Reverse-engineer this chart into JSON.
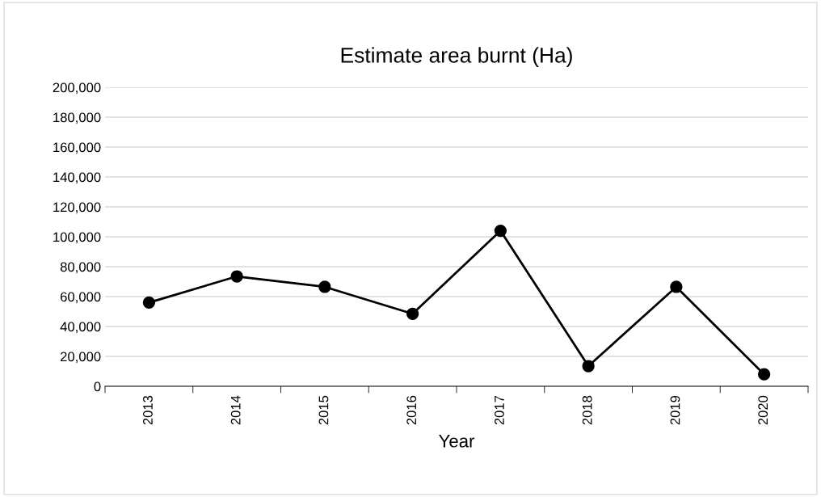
{
  "chart_data": {
    "type": "line",
    "title": "Estimate area burnt (Ha)",
    "xlabel": "Year",
    "categories": [
      "2013",
      "2014",
      "2015",
      "2016",
      "2017",
      "2018",
      "2019",
      "2020"
    ],
    "series": [
      {
        "color": "#000000",
        "values": [
          56000,
          73500,
          66500,
          48500,
          104000,
          13500,
          66500,
          8000
        ]
      }
    ],
    "ylim": [
      0,
      200000
    ],
    "yticks": [
      {
        "value": 0,
        "label": "0"
      },
      {
        "value": 20000,
        "label": "20,000"
      },
      {
        "value": 40000,
        "label": "40,000"
      },
      {
        "value": 60000,
        "label": "60,000"
      },
      {
        "value": 80000,
        "label": "80,000"
      },
      {
        "value": 100000,
        "label": "100,000"
      },
      {
        "value": 120000,
        "label": "120,000"
      },
      {
        "value": 140000,
        "label": "140,000"
      },
      {
        "value": 160000,
        "label": "160,000"
      },
      {
        "value": 180000,
        "label": "180,000"
      },
      {
        "value": 200000,
        "label": "200,000"
      }
    ],
    "grid": "y",
    "marker": "circle",
    "line_style": "solid"
  }
}
